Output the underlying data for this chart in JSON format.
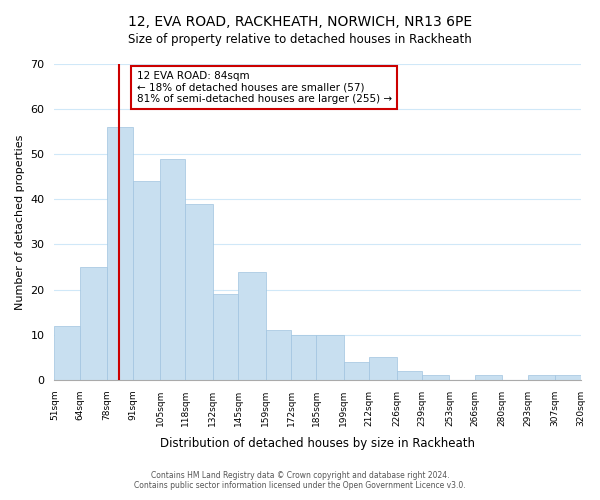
{
  "title": "12, EVA ROAD, RACKHEATH, NORWICH, NR13 6PE",
  "subtitle": "Size of property relative to detached houses in Rackheath",
  "xlabel": "Distribution of detached houses by size in Rackheath",
  "ylabel": "Number of detached properties",
  "bar_edges": [
    51,
    64,
    78,
    91,
    105,
    118,
    132,
    145,
    159,
    172,
    185,
    199,
    212,
    226,
    239,
    253,
    266,
    280,
    293,
    307,
    320
  ],
  "bar_heights": [
    12,
    25,
    56,
    44,
    49,
    39,
    19,
    24,
    11,
    10,
    10,
    4,
    5,
    2,
    1,
    0,
    1,
    0,
    1,
    1
  ],
  "bar_color": "#c8dff0",
  "bar_edge_color": "#a0c4e0",
  "vline_x": 84,
  "vline_color": "#cc0000",
  "annotation_title": "12 EVA ROAD: 84sqm",
  "annotation_line1": "← 18% of detached houses are smaller (57)",
  "annotation_line2": "81% of semi-detached houses are larger (255) →",
  "annotation_box_color": "#ffffff",
  "annotation_box_edge": "#cc0000",
  "ylim": [
    0,
    70
  ],
  "yticks": [
    0,
    10,
    20,
    30,
    40,
    50,
    60,
    70
  ],
  "tick_labels": [
    "51sqm",
    "64sqm",
    "78sqm",
    "91sqm",
    "105sqm",
    "118sqm",
    "132sqm",
    "145sqm",
    "159sqm",
    "172sqm",
    "185sqm",
    "199sqm",
    "212sqm",
    "226sqm",
    "239sqm",
    "253sqm",
    "266sqm",
    "280sqm",
    "293sqm",
    "307sqm",
    "320sqm"
  ],
  "footer_line1": "Contains HM Land Registry data © Crown copyright and database right 2024.",
  "footer_line2": "Contains public sector information licensed under the Open Government Licence v3.0.",
  "background_color": "#ffffff",
  "grid_color": "#d0e8f8"
}
